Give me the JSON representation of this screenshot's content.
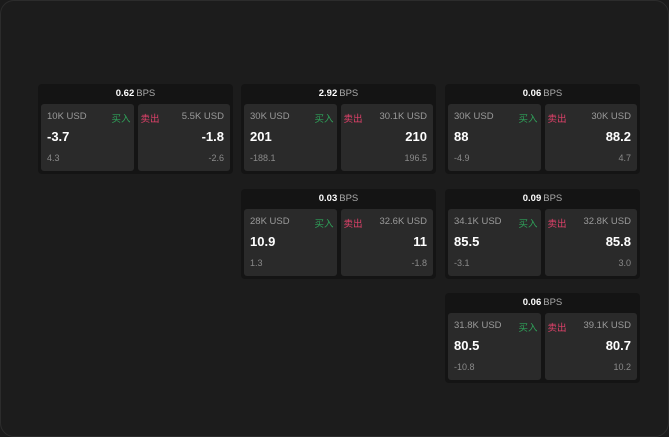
{
  "labels": {
    "buy": "买入",
    "sell": "卖出",
    "unit": "BPS"
  },
  "colors": {
    "buy": "#2fa35a",
    "sell": "#e0416a"
  },
  "panels": [
    {
      "spread": "0.62",
      "buy": {
        "size": "10K USD",
        "price": "-3.7",
        "change": "4.3"
      },
      "sell": {
        "size": "5.5K USD",
        "price": "-1.8",
        "change": "-2.6"
      }
    },
    {
      "spread": "2.92",
      "buy": {
        "size": "30K USD",
        "price": "201",
        "change": "-188.1"
      },
      "sell": {
        "size": "30.1K USD",
        "price": "210",
        "change": "196.5"
      }
    },
    {
      "spread": "0.06",
      "buy": {
        "size": "30K USD",
        "price": "88",
        "change": "-4.9"
      },
      "sell": {
        "size": "30K USD",
        "price": "88.2",
        "change": "4.7"
      }
    },
    {
      "spread": "0.03",
      "buy": {
        "size": "28K USD",
        "price": "10.9",
        "change": "1.3"
      },
      "sell": {
        "size": "32.6K USD",
        "price": "11",
        "change": "-1.8"
      }
    },
    {
      "spread": "0.09",
      "buy": {
        "size": "34.1K USD",
        "price": "85.5",
        "change": "-3.1"
      },
      "sell": {
        "size": "32.8K USD",
        "price": "85.8",
        "change": "3.0"
      }
    },
    {
      "spread": "0.06",
      "buy": {
        "size": "31.8K USD",
        "price": "80.5",
        "change": "-10.8"
      },
      "sell": {
        "size": "39.1K USD",
        "price": "80.7",
        "change": "10.2"
      }
    }
  ]
}
